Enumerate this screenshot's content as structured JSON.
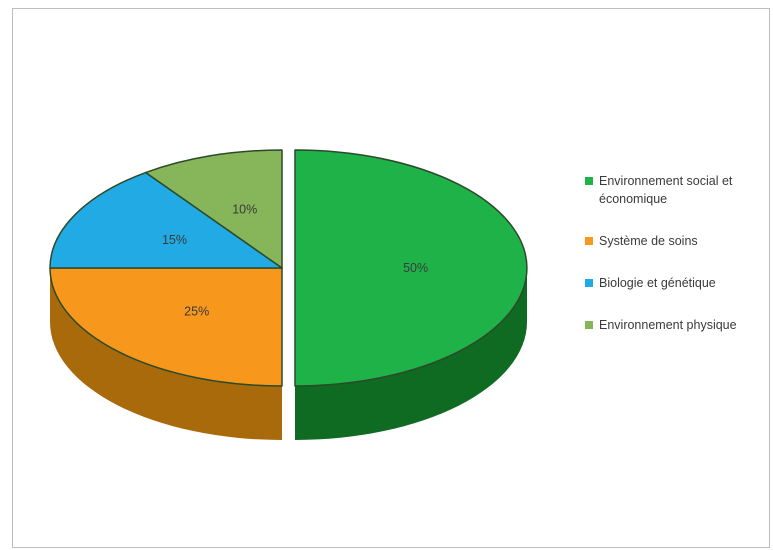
{
  "chart_data": {
    "type": "pie",
    "title": "",
    "slices": [
      {
        "label": "Environnement social et économique",
        "value": 50,
        "value_label": "50%",
        "color": "#1fb249",
        "side_color": "#0f6a22"
      },
      {
        "label": "Système de soins",
        "value": 25,
        "value_label": "25%",
        "color": "#f7981d",
        "side_color": "#a86a0a"
      },
      {
        "label": "Biologie et génétique",
        "value": 15,
        "value_label": "15%",
        "color": "#21aae4",
        "side_color": "#1378a3"
      },
      {
        "label": "Environnement physique",
        "value": 10,
        "value_label": "10%",
        "color": "#86b55a",
        "side_color": "#557a35"
      }
    ],
    "legend_position": "right",
    "style": "3d-exploded"
  }
}
